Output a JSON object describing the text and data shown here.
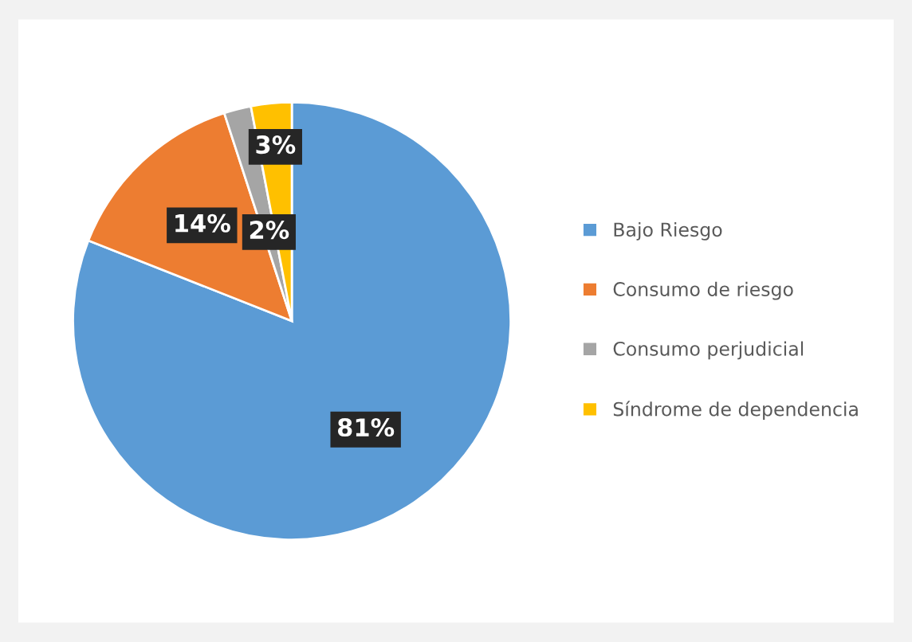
{
  "chart_data": {
    "type": "pie",
    "categories": [
      "Bajo Riesgo",
      "Consumo de riesgo",
      "Consumo perjudicial",
      "Síndrome de dependencia"
    ],
    "values": [
      81,
      14,
      2,
      3
    ],
    "colors": [
      "#5b9bd5",
      "#ed7d31",
      "#a5a5a5",
      "#ffc000"
    ],
    "value_labels": [
      "81%",
      "14%",
      "2%",
      "3%"
    ],
    "legend": "right"
  }
}
